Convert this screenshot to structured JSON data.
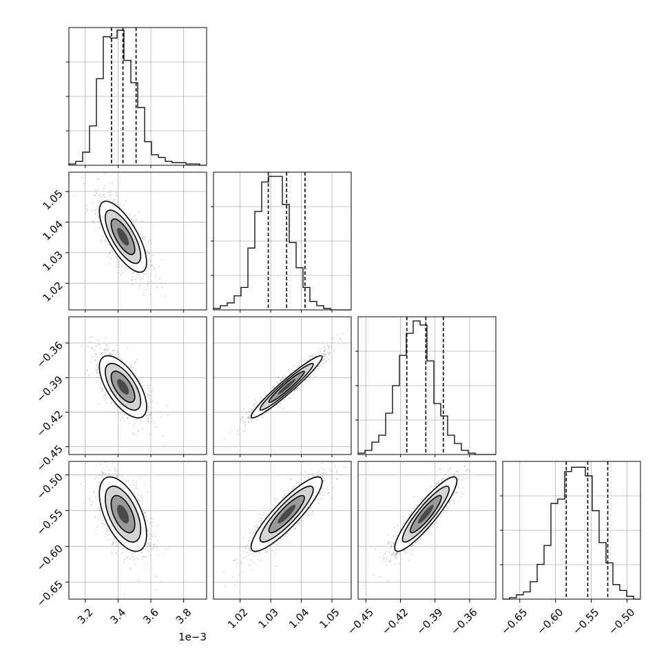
{
  "chart_data": {
    "type": "corner",
    "grid": true,
    "axis_tick_labels": [
      {
        "ticks": [
          3.2,
          3.4,
          3.6,
          3.8
        ],
        "labels": [
          "3.2",
          "3.4",
          "3.6",
          "3.8"
        ],
        "offset_label": "1e−3"
      },
      {
        "ticks": [
          1.02,
          1.03,
          1.04,
          1.05
        ],
        "labels": [
          "1.02",
          "1.03",
          "1.04",
          "1.05"
        ],
        "offset_label": ""
      },
      {
        "ticks": [
          -0.45,
          -0.42,
          -0.39,
          -0.36
        ],
        "labels": [
          "−0.45",
          "−0.42",
          "−0.39",
          "−0.36"
        ],
        "offset_label": ""
      },
      {
        "ticks": [
          -0.65,
          -0.6,
          -0.55,
          -0.5
        ],
        "labels": [
          "−0.65",
          "−0.60",
          "−0.55",
          "−0.50"
        ],
        "offset_label": ""
      }
    ],
    "ranges": [
      [
        3.1,
        3.94
      ],
      [
        1.0113,
        1.0563
      ],
      [
        -0.4568,
        -0.3372
      ],
      [
        -0.6738,
        -0.4813
      ]
    ],
    "quantiles": [
      [
        3.36,
        3.43,
        3.51
      ],
      [
        1.0292,
        1.0352,
        1.0412
      ],
      [
        -0.4145,
        -0.398,
        -0.3828
      ],
      [
        -0.585,
        -0.555,
        -0.527
      ]
    ],
    "histograms": [
      {
        "counts": [
          1,
          3,
          10,
          30,
          66,
          98,
          97,
          103,
          80,
          63,
          44,
          18,
          8,
          6,
          3,
          2,
          2,
          1,
          1,
          0
        ],
        "ymax": 105
      },
      {
        "counts": [
          1,
          3,
          5,
          10,
          16,
          44,
          70,
          91,
          95,
          95,
          75,
          48,
          30,
          16,
          6,
          3,
          1,
          0,
          0,
          0
        ],
        "ymax": 98
      },
      {
        "counts": [
          1,
          3,
          9,
          14,
          30,
          50,
          72,
          88,
          97,
          94,
          68,
          37,
          28,
          14,
          8,
          3,
          1,
          0,
          0,
          0
        ],
        "ymax": 100
      },
      {
        "counts": [
          0,
          1,
          3,
          5,
          12,
          24,
          37,
          66,
          69,
          88,
          91,
          91,
          85,
          61,
          39,
          25,
          10,
          6,
          2,
          0
        ],
        "ymax": 95
      }
    ],
    "pairs": [
      {
        "row": 1,
        "col": 0,
        "mean": [
          3.43,
          1.0352
        ],
        "sd": [
          0.072,
          0.0058
        ],
        "rho": -0.72
      },
      {
        "row": 2,
        "col": 0,
        "mean": [
          3.43,
          -0.398
        ],
        "sd": [
          0.072,
          0.0135
        ],
        "rho": -0.64
      },
      {
        "row": 2,
        "col": 1,
        "mean": [
          1.0352,
          -0.398
        ],
        "sd": [
          0.0058,
          0.0135
        ],
        "rho": 0.96
      },
      {
        "row": 3,
        "col": 0,
        "mean": [
          3.43,
          -0.555
        ],
        "sd": [
          0.072,
          0.026
        ],
        "rho": -0.55
      },
      {
        "row": 3,
        "col": 1,
        "mean": [
          1.0352,
          -0.555
        ],
        "sd": [
          0.0058,
          0.026
        ],
        "rho": 0.88
      },
      {
        "row": 3,
        "col": 2,
        "mean": [
          -0.398,
          -0.555
        ],
        "sd": [
          0.0135,
          0.026
        ],
        "rho": 0.9
      }
    ]
  }
}
